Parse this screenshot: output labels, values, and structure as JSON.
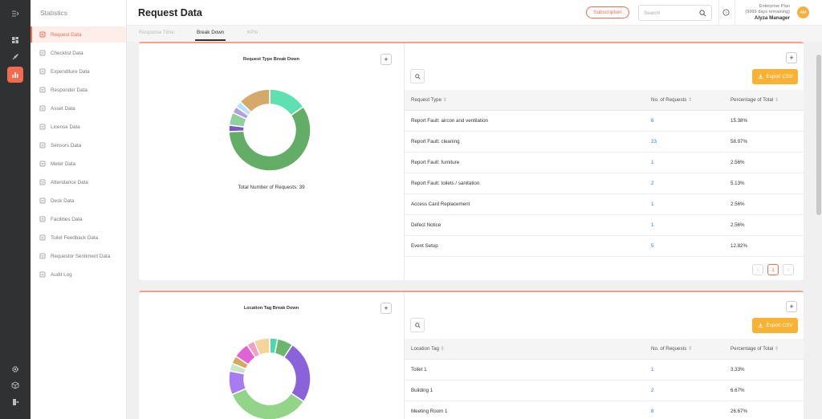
{
  "page_title": "Request Data",
  "sidebar": {
    "title": "Statistics",
    "items": [
      {
        "label": "Request Data",
        "icon": "document-icon"
      },
      {
        "label": "Checklist Data",
        "icon": "checklist-icon"
      },
      {
        "label": "Expenditure Data",
        "icon": "wallet-icon"
      },
      {
        "label": "Responder Data",
        "icon": "users-icon"
      },
      {
        "label": "Asset Data",
        "icon": "box-icon"
      },
      {
        "label": "License Data",
        "icon": "shield-icon"
      },
      {
        "label": "Sensors Data",
        "icon": "sensor-icon"
      },
      {
        "label": "Meter Data",
        "icon": "gauge-icon"
      },
      {
        "label": "Attendance Data",
        "icon": "calendar-icon"
      },
      {
        "label": "Desk Data",
        "icon": "desk-icon"
      },
      {
        "label": "Facilities Data",
        "icon": "building-icon"
      },
      {
        "label": "Toilet Feedback Data",
        "icon": "list-icon"
      },
      {
        "label": "Requestor Sentiment Data",
        "icon": "smile-icon"
      },
      {
        "label": "Audit Log",
        "icon": "log-icon"
      }
    ]
  },
  "header": {
    "subscription_label": "Subscription",
    "search_placeholder": "Search",
    "plan_name": "Enterprise Plan",
    "plan_remaining": "(9999 days remaining)",
    "user_name": "Alyza Manager",
    "avatar_initials": "AM"
  },
  "tabs": [
    "Response Time",
    "Break Down",
    "KPIs"
  ],
  "card1": {
    "chart_title": "Request Type Break Down",
    "total_text": "Total Number of Requests: 39",
    "export_label": "Export CSV",
    "columns": [
      "Request Type",
      "No. of Requests",
      "Percentage of Total"
    ],
    "rows": [
      [
        "Report Fault: aircon and ventilation",
        "6",
        "15.38%"
      ],
      [
        "Report Fault: cleaning",
        "23",
        "58.97%"
      ],
      [
        "Report Fault: furniture",
        "1",
        "2.56%"
      ],
      [
        "Report Fault: toilets / sanitation",
        "2",
        "5.13%"
      ],
      [
        "Access Card Replacement",
        "1",
        "2.56%"
      ],
      [
        "Defect Notice",
        "1",
        "2.56%"
      ],
      [
        "Event Setup",
        "5",
        "12.82%"
      ]
    ],
    "page": "1"
  },
  "card2": {
    "chart_title": "Location Tag Break Down",
    "export_label": "Export CSV",
    "columns": [
      "Location Tag",
      "No. of Requests",
      "Percentage of Total"
    ],
    "rows": [
      [
        "Toilet 1",
        "1",
        "3.33%"
      ],
      [
        "Building 1",
        "2",
        "6.67%"
      ],
      [
        "Meeting Room 1",
        "8",
        "26.67%"
      ]
    ]
  },
  "chart_data": [
    {
      "type": "pie",
      "title": "Request Type Break Down",
      "categories": [
        "Report Fault: aircon and ventilation",
        "Report Fault: cleaning",
        "Report Fault: furniture",
        "Report Fault: toilets / sanitation",
        "Access Card Replacement",
        "Defect Notice",
        "Event Setup"
      ],
      "values": [
        6,
        23,
        1,
        2,
        1,
        1,
        5
      ],
      "colors": [
        "#5fe0b0",
        "#64ad67",
        "#7e57c2",
        "#8fd19e",
        "#b39ddb",
        "#b3e5fc",
        "#d4a96a"
      ]
    },
    {
      "type": "pie",
      "title": "Location Tag Break Down",
      "values": [
        1,
        2,
        8,
        11,
        3,
        1,
        1,
        2,
        1,
        2
      ],
      "colors": [
        "#4fd6b0",
        "#6cb56f",
        "#8a62d9",
        "#92d488",
        "#a67cf0",
        "#c8e6c9",
        "#d7a85f",
        "#e062d4",
        "#f0a0c8",
        "#f5d49a"
      ]
    }
  ]
}
